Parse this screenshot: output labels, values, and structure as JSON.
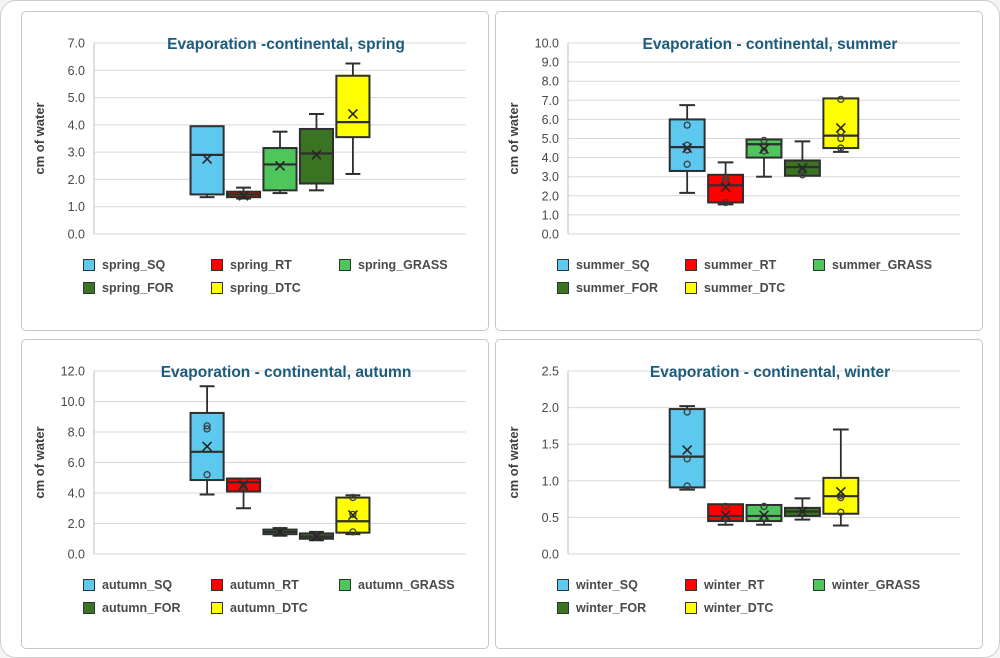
{
  "page": {
    "name": "Evaporation box plot dashboard"
  },
  "styles": {
    "title_color": "#1D5B7C",
    "axis_text_color": "#474747",
    "legend_text_color": "#4a4a4a",
    "box_stroke": "#2e2e2e",
    "gridline_color": "#D8D8D8",
    "axis_line_color": "#BFBFBF",
    "panel_border": "#c6c6c6"
  },
  "chart_data": [
    {
      "type": "box",
      "title": "Evaporation -continental, spring",
      "ylabel": "cm of water",
      "ylim": [
        0,
        7.0
      ],
      "ystep": 1.0,
      "grid": true,
      "legend_position": "bottom",
      "series": [
        {
          "name": "spring_SQ",
          "color": "#5EC9EE",
          "whisker_low": 1.35,
          "q1": 1.45,
          "median": 2.9,
          "q3": 3.95,
          "whisker_high": 3.95,
          "mean": 2.75,
          "points": []
        },
        {
          "name": "spring_RT",
          "color": "#FF0000",
          "whisker_low": 1.3,
          "q1": 1.35,
          "median": 1.45,
          "q3": 1.55,
          "whisker_high": 1.7,
          "mean": 1.4,
          "points": []
        },
        {
          "name": "spring_GRASS",
          "color": "#4FC65C",
          "whisker_low": 1.5,
          "q1": 1.6,
          "median": 2.55,
          "q3": 3.15,
          "whisker_high": 3.75,
          "mean": 2.5,
          "points": []
        },
        {
          "name": "spring_FOR",
          "color": "#3A7322",
          "whisker_low": 1.6,
          "q1": 1.85,
          "median": 2.95,
          "q3": 3.85,
          "whisker_high": 4.4,
          "mean": 2.9,
          "points": []
        },
        {
          "name": "spring_DTC",
          "color": "#FFFF00",
          "whisker_low": 2.2,
          "q1": 3.55,
          "median": 4.1,
          "q3": 5.8,
          "whisker_high": 6.25,
          "mean": 4.4,
          "points": []
        }
      ]
    },
    {
      "type": "box",
      "title": "Evaporation - continental, summer",
      "ylabel": "cm of water",
      "ylim": [
        0,
        10.0
      ],
      "ystep": 1.0,
      "grid": true,
      "legend_position": "bottom",
      "series": [
        {
          "name": "summer_SQ",
          "color": "#5EC9EE",
          "whisker_low": 2.15,
          "q1": 3.3,
          "median": 4.55,
          "q3": 6.0,
          "whisker_high": 6.75,
          "mean": 4.5,
          "points": [
            5.7,
            4.65,
            4.4,
            3.65
          ]
        },
        {
          "name": "summer_RT",
          "color": "#FF0000",
          "whisker_low": 1.55,
          "q1": 1.65,
          "median": 2.55,
          "q3": 3.1,
          "whisker_high": 3.75,
          "mean": 2.45,
          "points": [
            2.9,
            2.75,
            1.65
          ]
        },
        {
          "name": "summer_GRASS",
          "color": "#4FC65C",
          "whisker_low": 3.0,
          "q1": 4.0,
          "median": 4.7,
          "q3": 4.95,
          "whisker_high": 4.95,
          "mean": 4.45,
          "points": [
            4.9,
            4.35
          ]
        },
        {
          "name": "summer_FOR",
          "color": "#3A7322",
          "whisker_low": 3.05,
          "q1": 3.05,
          "median": 3.5,
          "q3": 3.85,
          "whisker_high": 4.85,
          "mean": 3.45,
          "points": [
            3.3,
            3.1
          ]
        },
        {
          "name": "summer_DTC",
          "color": "#FFFF00",
          "whisker_low": 4.3,
          "q1": 4.5,
          "median": 5.15,
          "q3": 7.1,
          "whisker_high": 7.1,
          "mean": 5.55,
          "points": [
            7.05,
            5.35,
            5.0,
            4.5
          ]
        }
      ]
    },
    {
      "type": "box",
      "title": "Evaporation - continental, autumn",
      "ylabel": "cm of water",
      "ylim": [
        0,
        12.0
      ],
      "ystep": 2.0,
      "grid": true,
      "legend_position": "bottom",
      "series": [
        {
          "name": "autumn_SQ",
          "color": "#5EC9EE",
          "whisker_low": 3.9,
          "q1": 4.85,
          "median": 6.7,
          "q3": 9.25,
          "whisker_high": 11.0,
          "mean": 7.05,
          "points": [
            8.4,
            8.2,
            5.2
          ]
        },
        {
          "name": "autumn_RT",
          "color": "#FF0000",
          "whisker_low": 3.0,
          "q1": 4.1,
          "median": 4.7,
          "q3": 4.95,
          "whisker_high": 4.95,
          "mean": 4.5,
          "points": [
            4.75,
            4.4
          ]
        },
        {
          "name": "autumn_GRASS",
          "color": "#4FC65C",
          "whisker_low": 1.2,
          "q1": 1.3,
          "median": 1.45,
          "q3": 1.6,
          "whisker_high": 1.7,
          "mean": 1.45,
          "points": [
            1.55
          ]
        },
        {
          "name": "autumn_FOR",
          "color": "#3A7322",
          "whisker_low": 0.9,
          "q1": 1.0,
          "median": 1.15,
          "q3": 1.35,
          "whisker_high": 1.45,
          "mean": 1.15,
          "points": [
            1.2
          ]
        },
        {
          "name": "autumn_DTC",
          "color": "#FFFF00",
          "whisker_low": 1.3,
          "q1": 1.4,
          "median": 2.15,
          "q3": 3.7,
          "whisker_high": 3.85,
          "mean": 2.55,
          "points": [
            3.7,
            2.6,
            1.45
          ]
        }
      ]
    },
    {
      "type": "box",
      "title": "Evaporation - continental, winter",
      "ylabel": "cm of water",
      "ylim": [
        0,
        2.5
      ],
      "ystep": 0.5,
      "grid": true,
      "legend_position": "bottom",
      "series": [
        {
          "name": "winter_SQ",
          "color": "#5EC9EE",
          "whisker_low": 0.88,
          "q1": 0.91,
          "median": 1.33,
          "q3": 1.98,
          "whisker_high": 2.02,
          "mean": 1.42,
          "points": [
            1.94,
            1.3,
            0.93
          ]
        },
        {
          "name": "winter_RT",
          "color": "#FF0000",
          "whisker_low": 0.4,
          "q1": 0.45,
          "median": 0.52,
          "q3": 0.68,
          "whisker_high": 0.68,
          "mean": 0.53,
          "points": [
            0.65,
            0.5
          ]
        },
        {
          "name": "winter_GRASS",
          "color": "#4FC65C",
          "whisker_low": 0.4,
          "q1": 0.45,
          "median": 0.52,
          "q3": 0.67,
          "whisker_high": 0.67,
          "mean": 0.53,
          "points": [
            0.65,
            0.5
          ]
        },
        {
          "name": "winter_FOR",
          "color": "#3A7322",
          "whisker_low": 0.47,
          "q1": 0.52,
          "median": 0.58,
          "q3": 0.63,
          "whisker_high": 0.76,
          "mean": 0.58,
          "points": []
        },
        {
          "name": "winter_DTC",
          "color": "#FFFF00",
          "whisker_low": 0.39,
          "q1": 0.55,
          "median": 0.79,
          "q3": 1.04,
          "whisker_high": 1.7,
          "mean": 0.85,
          "points": [
            0.8,
            0.77,
            0.57
          ]
        }
      ]
    }
  ]
}
